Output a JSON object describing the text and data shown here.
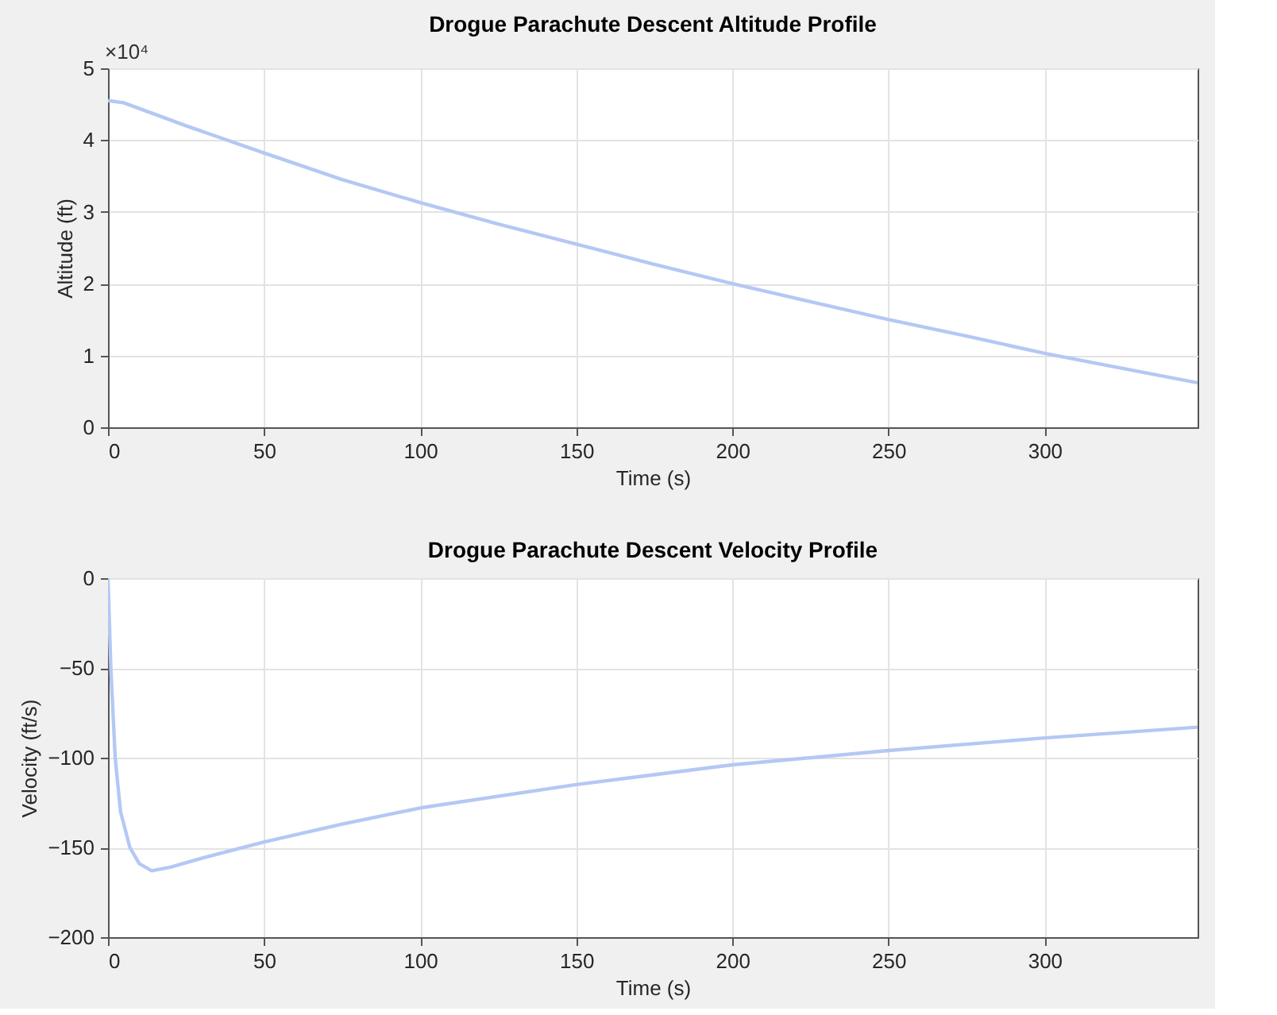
{
  "chart_data": [
    {
      "type": "line",
      "title": "Drogue Parachute Descent Altitude Profile",
      "xlabel": "Time (s)",
      "ylabel": "Altitude (ft)",
      "annotations": [
        "×10⁴"
      ],
      "x": [
        0,
        5,
        25,
        50,
        75,
        100,
        125,
        150,
        175,
        200,
        225,
        250,
        275,
        300,
        325,
        349
      ],
      "series": [
        {
          "color": "#b4c8f4",
          "values": [
            4.55,
            4.52,
            4.2,
            3.82,
            3.45,
            3.13,
            2.83,
            2.55,
            2.27,
            2.0,
            1.75,
            1.5,
            1.27,
            1.03,
            0.82,
            0.62
          ]
        }
      ],
      "xlim": [
        0,
        349
      ],
      "xticks": [
        0,
        50,
        100,
        150,
        200,
        250,
        300
      ],
      "ylim": [
        0,
        5
      ],
      "yticks": [
        0,
        1,
        2,
        3,
        4,
        5
      ],
      "grid": true
    },
    {
      "type": "line",
      "title": "Drogue Parachute Descent Velocity Profile",
      "xlabel": "Time (s)",
      "ylabel": "Velocity (ft/s)",
      "x": [
        0,
        0.9,
        2.3,
        4,
        7,
        10,
        14,
        20,
        30,
        50,
        75,
        100,
        150,
        200,
        250,
        300,
        349
      ],
      "series": [
        {
          "color": "#b4c8f4",
          "values": [
            0,
            -50,
            -100,
            -130,
            -150,
            -159,
            -163,
            -161,
            -156,
            -147,
            -137,
            -128,
            -115,
            -104,
            -96,
            -89,
            -83
          ]
        }
      ],
      "xlim": [
        0,
        349
      ],
      "xticks": [
        0,
        50,
        100,
        150,
        200,
        250,
        300
      ],
      "ylim": [
        -200,
        0
      ],
      "yticks": [
        -200,
        -150,
        -100,
        -50,
        0
      ],
      "grid": true
    }
  ]
}
